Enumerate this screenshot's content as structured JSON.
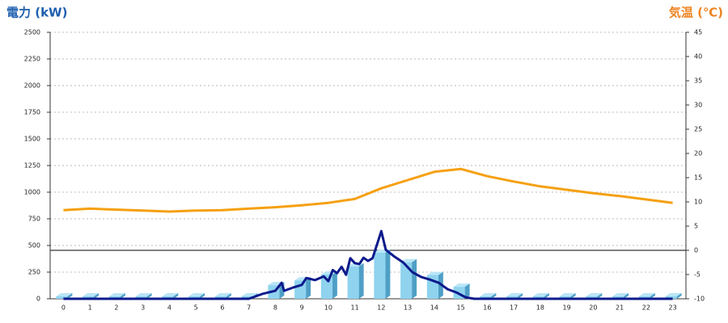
{
  "chart_data": {
    "type": "combo",
    "title_left": "電力 (kW)",
    "title_left_color": "#1e5fae",
    "title_right": "気温 (℃)",
    "title_right_color": "#ee8422",
    "categories": [
      0,
      1,
      2,
      3,
      4,
      5,
      6,
      7,
      8,
      9,
      10,
      11,
      12,
      13,
      14,
      15,
      16,
      17,
      18,
      19,
      20,
      21,
      22,
      23
    ],
    "ylim": [
      0,
      2500
    ],
    "yticks": [
      0,
      250,
      500,
      750,
      1000,
      1250,
      1500,
      1750,
      2000,
      2250,
      2500
    ],
    "y2lim": [
      -10,
      45
    ],
    "y2ticks": [
      -10,
      -5,
      0,
      5,
      10,
      15,
      20,
      25,
      30,
      35,
      40,
      45
    ],
    "grid": true,
    "zero_line_y2": true,
    "series": [
      {
        "type": "bar",
        "color": "#8fd3ef",
        "values": [
          0,
          0,
          0,
          0,
          0,
          0,
          0,
          0,
          105,
          150,
          205,
          280,
          410,
          320,
          200,
          90,
          0,
          0,
          0,
          0,
          0,
          0,
          0,
          0
        ]
      },
      {
        "type": "line",
        "color": "#0d1a8c",
        "x": [
          0,
          7,
          7.5,
          8,
          8.24,
          8.33,
          8.67,
          9,
          9.17,
          9.5,
          9.83,
          10,
          10.17,
          10.33,
          10.5,
          10.67,
          10.83,
          11,
          11.17,
          11.33,
          11.5,
          11.67,
          12,
          12.17,
          12.5,
          12.83,
          13.17,
          13.5,
          13.83,
          14.17,
          14.5,
          14.83,
          15.17,
          15.5,
          23
        ],
        "values": [
          0,
          0,
          45,
          75,
          150,
          75,
          105,
          130,
          195,
          175,
          210,
          165,
          270,
          240,
          300,
          225,
          380,
          335,
          325,
          385,
          355,
          380,
          635,
          460,
          395,
          340,
          250,
          205,
          180,
          150,
          90,
          60,
          15,
          0,
          0
        ]
      },
      {
        "type": "line",
        "color": "#f5a011",
        "axis": "y2",
        "values": [
          8.3,
          8.6,
          8.4,
          8.2,
          8.0,
          8.2,
          8.3,
          8.6,
          8.9,
          9.3,
          9.8,
          10.6,
          12.8,
          14.5,
          16.2,
          16.8,
          15.3,
          14.2,
          13.2,
          12.5,
          11.8,
          11.2,
          10.5,
          9.8
        ]
      }
    ]
  }
}
